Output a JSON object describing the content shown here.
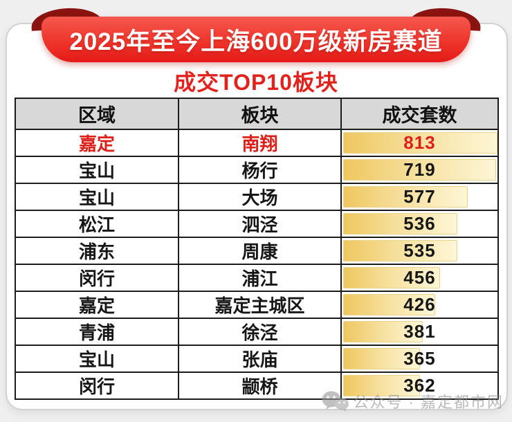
{
  "page": {
    "background": "#efefef"
  },
  "banner": {
    "title": "2025年至今上海600万级新房赛道",
    "bg_top": "#f6584e",
    "bg_bottom": "#e41a17",
    "curl_color": "#8a1411",
    "text_color": "#ffffff"
  },
  "subtitle": {
    "text": "成交TOP10板块",
    "color": "#e2231d"
  },
  "table": {
    "headers": [
      "区域",
      "板块",
      "成交套数"
    ],
    "header_bg": "#d8d8d8",
    "border_color": "#1b1b1b",
    "highlight_color": "#dd1f1a",
    "bar_color_left": "#eec75f",
    "bar_color_right": "#fdf6d6",
    "rows": [
      {
        "region": "嘉定",
        "sector": "南翔",
        "count": "813",
        "bar_pct": 100,
        "highlight": true
      },
      {
        "region": "宝山",
        "sector": "杨行",
        "count": "719",
        "bar_pct": 99,
        "highlight": false
      },
      {
        "region": "宝山",
        "sector": "大场",
        "count": "577",
        "bar_pct": 81,
        "highlight": false
      },
      {
        "region": "松江",
        "sector": "泗泾",
        "count": "536",
        "bar_pct": 74,
        "highlight": false
      },
      {
        "region": "浦东",
        "sector": "周康",
        "count": "535",
        "bar_pct": 74,
        "highlight": false
      },
      {
        "region": "闵行",
        "sector": "浦江",
        "count": "456",
        "bar_pct": 63,
        "highlight": false
      },
      {
        "region": "嘉定",
        "sector": "嘉定主城区",
        "count": "426",
        "bar_pct": 60,
        "highlight": false
      },
      {
        "region": "青浦",
        "sector": "徐泾",
        "count": "381",
        "bar_pct": 52,
        "highlight": false
      },
      {
        "region": "宝山",
        "sector": "张庙",
        "count": "365",
        "bar_pct": 50,
        "highlight": false
      },
      {
        "region": "闵行",
        "sector": "颛桥",
        "count": "362",
        "bar_pct": 50,
        "highlight": false
      }
    ]
  },
  "watermark": {
    "icon": "wechat-icon",
    "text": "公众号 · 嘉定都市网",
    "color": "#8f8f8f"
  },
  "chart_data": {
    "type": "table",
    "title": "2025年至今上海600万级新房赛道 成交TOP10板块",
    "columns": [
      "区域",
      "板块",
      "成交套数"
    ],
    "categories": [
      "南翔",
      "杨行",
      "大场",
      "泗泾",
      "周康",
      "浦江",
      "嘉定主城区",
      "徐泾",
      "张庙",
      "颛桥"
    ],
    "regions": [
      "嘉定",
      "宝山",
      "宝山",
      "松江",
      "浦东",
      "闵行",
      "嘉定",
      "青浦",
      "宝山",
      "闵行"
    ],
    "values": [
      813,
      719,
      577,
      536,
      535,
      456,
      426,
      381,
      365,
      362
    ],
    "max_value": 813,
    "bar_style": "in-cell gradient data bars, gold fading to cream",
    "legend_position": "none",
    "grid": "full black cell borders"
  }
}
